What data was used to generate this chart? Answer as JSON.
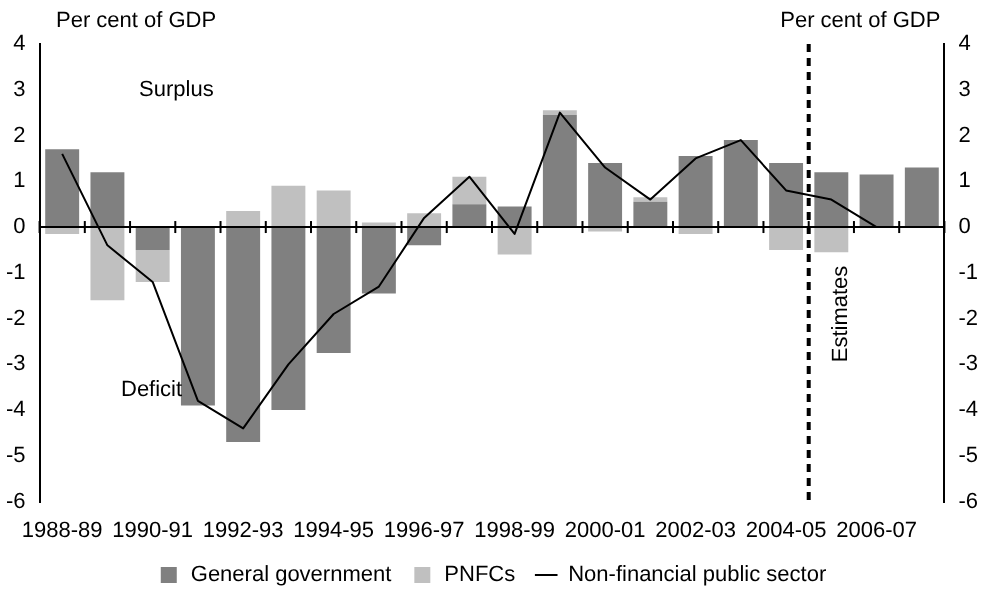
{
  "chart_data": {
    "type": "bar",
    "stacked": true,
    "categories": [
      "1988-89",
      null,
      "1990-91",
      null,
      "1992-93",
      null,
      "1994-95",
      null,
      "1996-97",
      null,
      "1998-99",
      null,
      "2000-01",
      null,
      "2002-03",
      null,
      "2004-05",
      null,
      "2006-07",
      null
    ],
    "series": [
      {
        "name": "General government",
        "color": "#808080",
        "values": [
          1.7,
          1.2,
          -0.5,
          -3.9,
          -4.7,
          -4.0,
          -2.75,
          -1.45,
          -0.4,
          0.5,
          0.45,
          2.45,
          1.4,
          0.55,
          1.55,
          1.9,
          1.4,
          1.2,
          1.15,
          1.3
        ]
      },
      {
        "name": "PNFCs",
        "color": "#c0c0c0",
        "values": [
          -0.15,
          -1.6,
          -0.7,
          0,
          0.35,
          0.9,
          0.8,
          0.1,
          0.3,
          0.6,
          -0.6,
          0.1,
          -0.1,
          0.1,
          -0.15,
          0,
          -0.5,
          -0.55,
          null,
          null
        ]
      },
      {
        "name": "Non-financial public sector",
        "type": "line",
        "color": "#000000",
        "values": [
          1.6,
          -0.4,
          -1.2,
          -3.8,
          -4.4,
          -3.0,
          -1.9,
          -1.3,
          0.2,
          1.1,
          -0.15,
          2.5,
          1.3,
          0.6,
          1.5,
          1.9,
          0.8,
          0.6,
          0.0,
          null
        ]
      }
    ],
    "ylabel": "Per cent of GDP",
    "y2label": "Per cent of GDP",
    "ylim": [
      -6,
      4
    ],
    "yticks": [
      -6,
      -5,
      -4,
      -3,
      -2,
      -1,
      0,
      1,
      2,
      3,
      4
    ],
    "y2lim": [
      -6,
      4
    ],
    "y2ticks": [
      -6,
      -5,
      -4,
      -3,
      -2,
      -1,
      0,
      1,
      2,
      3,
      4
    ],
    "legend": "bottom",
    "marker": "none",
    "line_style": "solid",
    "ref_lines": [
      {
        "axis": "x",
        "value": "2004-05",
        "label": "Estimates",
        "line_style": "dashed"
      }
    ],
    "annotations": [
      "Surplus",
      "Deficit"
    ]
  }
}
